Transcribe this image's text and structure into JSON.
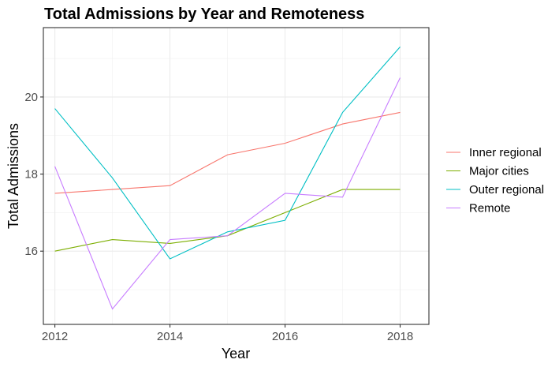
{
  "chart_data": {
    "type": "line",
    "title": "Total Admissions by Year and  Remoteness",
    "xlabel": "Year",
    "ylabel": "Total Admissions",
    "x": [
      2012,
      2013,
      2014,
      2015,
      2016,
      2017,
      2018
    ],
    "x_ticks": [
      "2012",
      "2014",
      "2016",
      "2018"
    ],
    "y_ticks": [
      "16",
      "18",
      "20"
    ],
    "xlim": [
      2011.8,
      2018.5
    ],
    "ylim": [
      14.1,
      21.8
    ],
    "grid": true,
    "legend_position": "right",
    "series": [
      {
        "name": "Inner regional",
        "color": "#F8766D",
        "values": [
          17.5,
          17.6,
          17.7,
          18.5,
          18.8,
          19.3,
          19.6
        ]
      },
      {
        "name": "Major cities",
        "color": "#7CAE00",
        "values": [
          16.0,
          16.3,
          16.2,
          16.4,
          17.0,
          17.6,
          17.6
        ]
      },
      {
        "name": "Outer regional",
        "color": "#00BFC4",
        "values": [
          19.7,
          17.9,
          15.8,
          16.5,
          16.8,
          19.6,
          21.3
        ]
      },
      {
        "name": "Remote",
        "color": "#C77CFF",
        "values": [
          18.2,
          14.5,
          16.3,
          16.4,
          17.5,
          17.4,
          20.5
        ]
      }
    ]
  }
}
